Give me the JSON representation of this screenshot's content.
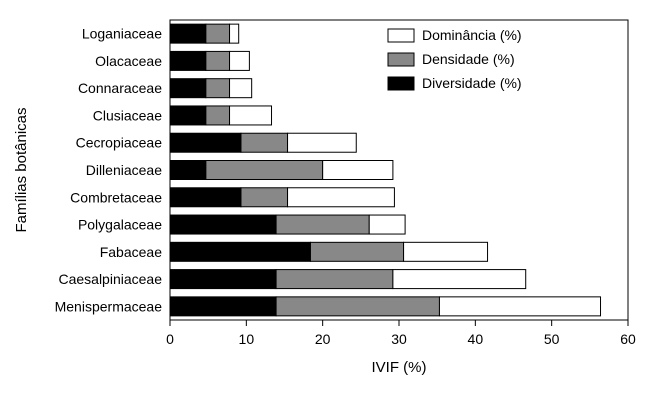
{
  "chart_data": {
    "type": "bar",
    "orientation": "horizontal",
    "stacked": true,
    "categories": [
      "Loganiaceae",
      "Olacaceae",
      "Connaraceae",
      "Clusiaceae",
      "Cecropiaceae",
      "Dilleniaceae",
      "Combretaceae",
      "Polygalaceae",
      "Fabaceae",
      "Caesalpiniaceae",
      "Menispermaceae"
    ],
    "series": [
      {
        "name": "Diversidade (%)",
        "color": "#000000",
        "values": [
          4.7,
          4.7,
          4.7,
          4.7,
          9.3,
          4.7,
          9.3,
          13.9,
          18.4,
          13.9,
          13.9
        ]
      },
      {
        "name": "Densidade (%)",
        "color": "#888888",
        "values": [
          3.1,
          3.1,
          3.1,
          3.1,
          6.1,
          15.3,
          6.1,
          12.2,
          12.2,
          15.3,
          21.4
        ]
      },
      {
        "name": "Dominância (%)",
        "color": "#ffffff",
        "values": [
          1.2,
          2.6,
          2.9,
          5.5,
          9.0,
          9.2,
          14.0,
          4.7,
          11.0,
          17.4,
          21.1
        ]
      }
    ],
    "legend_order": [
      "Dominância (%)",
      "Densidade (%)",
      "Diversidade (%)"
    ],
    "legend_position": "top-right",
    "xlabel": "IVIF (%)",
    "ylabel": "Famílias botânicas",
    "xlim": [
      0,
      60
    ],
    "xticks": [
      0,
      10,
      20,
      30,
      40,
      50,
      60
    ],
    "grid": false
  }
}
